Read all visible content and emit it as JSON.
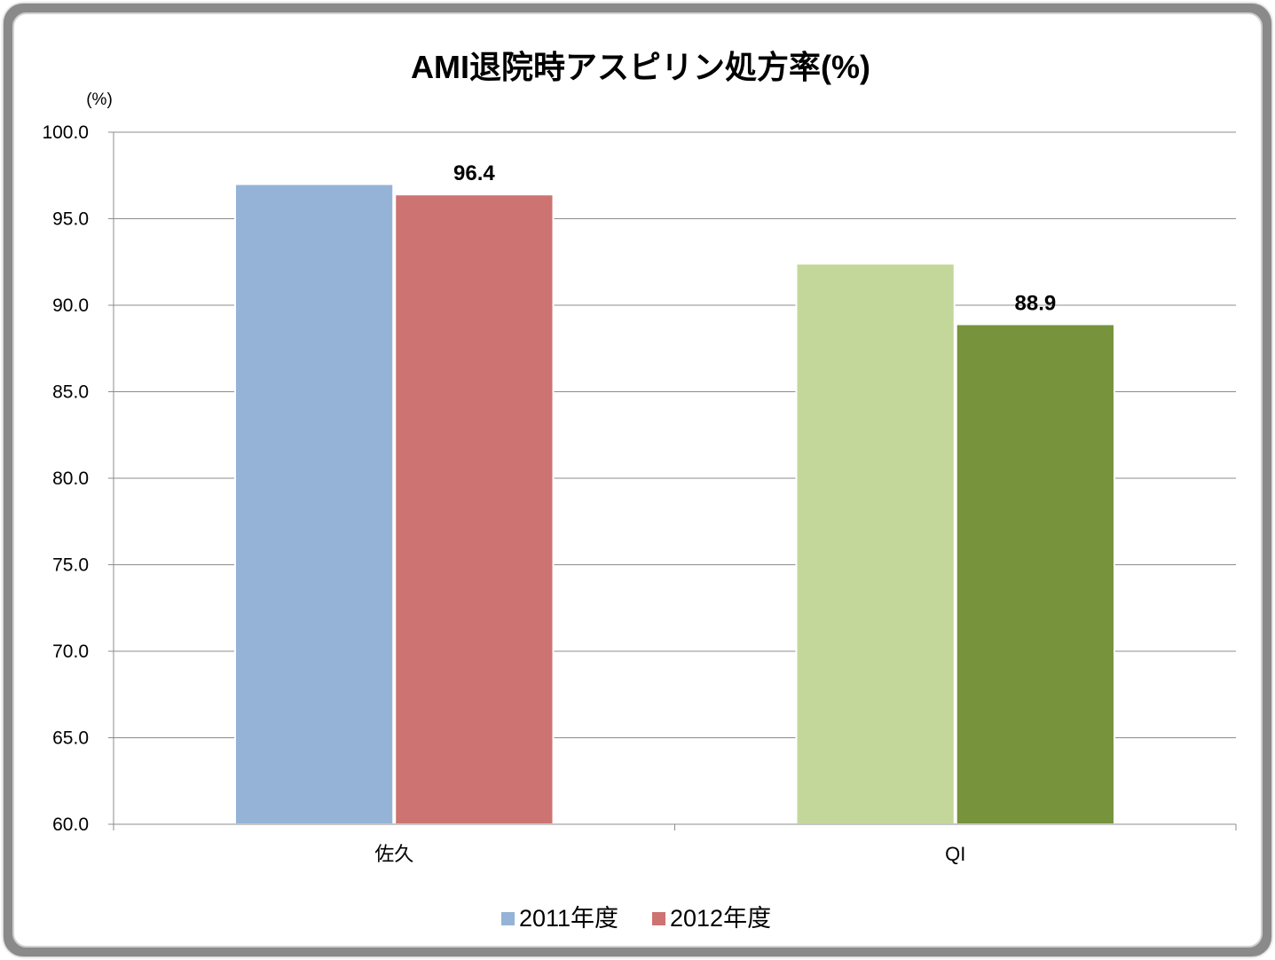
{
  "chart_data": {
    "type": "bar",
    "title": "AMI退院時アスピリン処方率(%)",
    "y_unit": "(%)",
    "ylim": [
      60,
      100
    ],
    "yticks": [
      "100.0",
      "95.0",
      "90.0",
      "85.0",
      "80.0",
      "75.0",
      "70.0",
      "65.0",
      "60.0"
    ],
    "categories": [
      "佐久",
      "QI"
    ],
    "series": [
      {
        "name": "2011年度",
        "values": [
          97.0,
          92.4
        ]
      },
      {
        "name": "2012年度",
        "values": [
          96.4,
          88.9
        ]
      }
    ],
    "bar_colors": [
      [
        "#95b3d7",
        "#c4d79b"
      ],
      [
        "#cd7371",
        "#77933c"
      ]
    ],
    "data_labels": [
      {
        "category": "佐久",
        "series": "2012年度",
        "text": "96.4"
      },
      {
        "category": "QI",
        "series": "2012年度",
        "text": "88.9"
      }
    ],
    "legend_colors": [
      "#95b3d7",
      "#cd7371"
    ],
    "legend_position": "bottom",
    "grid": true
  }
}
